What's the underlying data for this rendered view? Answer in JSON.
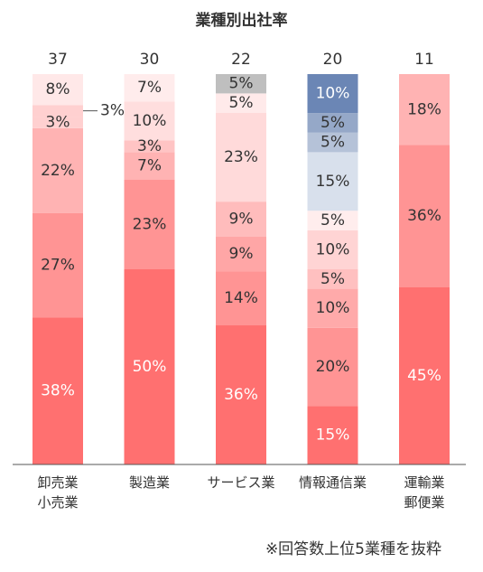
{
  "colors": {
    "red_shades": [
      "#ff7070",
      "#ff9494",
      "#ffb3b3",
      "#ffd0d0",
      "#ffe8e8"
    ],
    "blue_shades": [
      "#6b86b5",
      "#95a8c8",
      "#b5c2d8",
      "#d8e0ec"
    ],
    "gray": "#bfbfbf",
    "label_dark": "#333333",
    "label_light": "#ffffff"
  },
  "chart_data": {
    "type": "bar",
    "stacked": true,
    "title": "業種別出社率",
    "footnote": "※回答数上位5業種を抜粋",
    "xlabel": "",
    "ylabel": "",
    "ylim": [
      0,
      100
    ],
    "unit": "%",
    "grid": false,
    "legend": "none",
    "categories": [
      {
        "label_lines": [
          "卸売業",
          "小売業"
        ],
        "total": "37",
        "segments": [
          {
            "value": 38,
            "label": "38%",
            "color": "#ff7070",
            "label_color": "#ffffff"
          },
          {
            "value": 27,
            "label": "27%",
            "color": "#ff9494",
            "label_color": "#333333"
          },
          {
            "value": 22,
            "label": "22%",
            "color": "#ffb3b3",
            "label_color": "#333333"
          },
          {
            "value": 3,
            "label": "3%",
            "color": "#ffd0d0",
            "label_color": "#333333"
          },
          {
            "value": 3,
            "label": "3%",
            "color": "#ffd0d0",
            "label_color": "#333333",
            "callout": true
          },
          {
            "value": 8,
            "label": "8%",
            "color": "#ffe8e8",
            "label_color": "#333333"
          }
        ]
      },
      {
        "label_lines": [
          "製造業"
        ],
        "total": "30",
        "segments": [
          {
            "value": 50,
            "label": "50%",
            "color": "#ff7070",
            "label_color": "#ffffff"
          },
          {
            "value": 23,
            "label": "23%",
            "color": "#ff9494",
            "label_color": "#333333"
          },
          {
            "value": 7,
            "label": "7%",
            "color": "#ffb3b3",
            "label_color": "#333333"
          },
          {
            "value": 3,
            "label": "3%",
            "color": "#ffc4c4",
            "label_color": "#333333"
          },
          {
            "value": 10,
            "label": "10%",
            "color": "#ffdede",
            "label_color": "#333333"
          },
          {
            "value": 7,
            "label": "7%",
            "color": "#ffecec",
            "label_color": "#333333"
          }
        ]
      },
      {
        "label_lines": [
          "サービス業"
        ],
        "total": "22",
        "segments": [
          {
            "value": 36,
            "label": "36%",
            "color": "#ff7070",
            "label_color": "#ffffff"
          },
          {
            "value": 14,
            "label": "14%",
            "color": "#ff9494",
            "label_color": "#333333"
          },
          {
            "value": 9,
            "label": "9%",
            "color": "#ffa6a6",
            "label_color": "#333333"
          },
          {
            "value": 9,
            "label": "9%",
            "color": "#ffbcbc",
            "label_color": "#333333"
          },
          {
            "value": 23,
            "label": "23%",
            "color": "#ffdada",
            "label_color": "#333333"
          },
          {
            "value": 5,
            "label": "5%",
            "color": "#ffeaea",
            "label_color": "#333333"
          },
          {
            "value": 5,
            "label": "5%",
            "color": "#bfbfbf",
            "label_color": "#333333"
          }
        ]
      },
      {
        "label_lines": [
          "情報通信業"
        ],
        "total": "20",
        "segments": [
          {
            "value": 15,
            "label": "15%",
            "color": "#ff7070",
            "label_color": "#ffffff"
          },
          {
            "value": 20,
            "label": "20%",
            "color": "#ff9494",
            "label_color": "#333333"
          },
          {
            "value": 10,
            "label": "10%",
            "color": "#ffaaaa",
            "label_color": "#333333"
          },
          {
            "value": 5,
            "label": "5%",
            "color": "#ffc0c0",
            "label_color": "#333333"
          },
          {
            "value": 10,
            "label": "10%",
            "color": "#ffd4d4",
            "label_color": "#333333"
          },
          {
            "value": 5,
            "label": "5%",
            "color": "#ffeded",
            "label_color": "#333333"
          },
          {
            "value": 15,
            "label": "15%",
            "color": "#d8e0ec",
            "label_color": "#333333"
          },
          {
            "value": 5,
            "label": "5%",
            "color": "#b5c2d8",
            "label_color": "#333333"
          },
          {
            "value": 5,
            "label": "5%",
            "color": "#95a8c8",
            "label_color": "#333333"
          },
          {
            "value": 10,
            "label": "10%",
            "color": "#6b86b5",
            "label_color": "#ffffff"
          }
        ]
      },
      {
        "label_lines": [
          "運輸業",
          "郵便業"
        ],
        "total": "11",
        "segments": [
          {
            "value": 45,
            "label": "45%",
            "color": "#ff7070",
            "label_color": "#ffffff"
          },
          {
            "value": 36,
            "label": "36%",
            "color": "#ff9494",
            "label_color": "#333333"
          },
          {
            "value": 18,
            "label": "18%",
            "color": "#ffb3b3",
            "label_color": "#333333"
          }
        ]
      }
    ]
  }
}
